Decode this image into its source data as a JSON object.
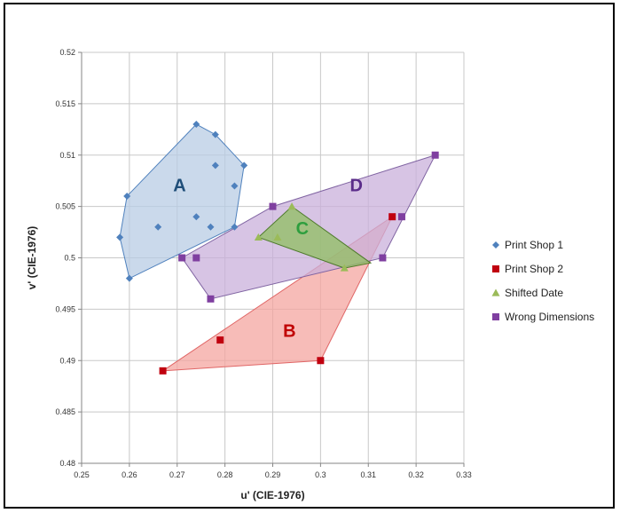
{
  "chart_data": {
    "type": "scatter",
    "xlabel": "u' (CIE-1976)",
    "ylabel": "v' (CIE-1976)",
    "xlim": [
      0.25,
      0.33
    ],
    "ylim": [
      0.48,
      0.52
    ],
    "xticks": [
      0.25,
      0.26,
      0.27,
      0.28,
      0.29,
      0.3,
      0.31,
      0.32,
      0.33
    ],
    "yticks": [
      0.48,
      0.485,
      0.49,
      0.495,
      0.5,
      0.505,
      0.51,
      0.515,
      0.52
    ],
    "xtick_labels": [
      "0.25",
      "0.26",
      "0.27",
      "0.28",
      "0.29",
      "0.3",
      "0.31",
      "0.32",
      "0.33"
    ],
    "ytick_labels": [
      "0.48",
      "0.485",
      "0.49",
      "0.495",
      "0.5",
      "0.505",
      "0.51",
      "0.515",
      "0.52"
    ],
    "grid": true,
    "legend_position": "right",
    "series": [
      {
        "name": "Print Shop 1",
        "marker": "diamond",
        "color": "#4f81bd",
        "points": [
          [
            0.258,
            0.502
          ],
          [
            0.2595,
            0.506
          ],
          [
            0.26,
            0.498
          ],
          [
            0.266,
            0.503
          ],
          [
            0.274,
            0.513
          ],
          [
            0.274,
            0.504
          ],
          [
            0.277,
            0.503
          ],
          [
            0.278,
            0.512
          ],
          [
            0.278,
            0.509
          ],
          [
            0.282,
            0.507
          ],
          [
            0.282,
            0.503
          ],
          [
            0.284,
            0.509
          ]
        ]
      },
      {
        "name": "Print Shop 2",
        "marker": "square",
        "color": "#c0000f",
        "points": [
          [
            0.267,
            0.489
          ],
          [
            0.279,
            0.492
          ],
          [
            0.3,
            0.49
          ],
          [
            0.315,
            0.504
          ]
        ]
      },
      {
        "name": "Shifted Date",
        "marker": "triangle",
        "color": "#9bbb59",
        "points": [
          [
            0.287,
            0.502
          ],
          [
            0.291,
            0.502
          ],
          [
            0.294,
            0.505
          ],
          [
            0.305,
            0.499
          ]
        ]
      },
      {
        "name": "Wrong Dimensions",
        "marker": "square",
        "color": "#7f3fa0",
        "points": [
          [
            0.271,
            0.5
          ],
          [
            0.274,
            0.5
          ],
          [
            0.277,
            0.496
          ],
          [
            0.29,
            0.505
          ],
          [
            0.313,
            0.5
          ],
          [
            0.317,
            0.504
          ],
          [
            0.324,
            0.51
          ]
        ]
      }
    ],
    "regions": [
      {
        "label": "A",
        "fill": "#b8cce4",
        "stroke": "#4f81bd",
        "label_color": "#1f4e79",
        "label_at": [
          0.2705,
          0.5065
        ],
        "polygon": [
          [
            0.258,
            0.502
          ],
          [
            0.2595,
            0.506
          ],
          [
            0.274,
            0.513
          ],
          [
            0.278,
            0.512
          ],
          [
            0.284,
            0.509
          ],
          [
            0.282,
            0.503
          ],
          [
            0.26,
            0.498
          ]
        ]
      },
      {
        "label": "B",
        "fill": "#f4a6a0",
        "stroke": "#e06666",
        "label_color": "#c00000",
        "label_at": [
          0.2935,
          0.4923
        ],
        "polygon": [
          [
            0.267,
            0.489
          ],
          [
            0.315,
            0.504
          ],
          [
            0.3,
            0.49
          ]
        ]
      },
      {
        "label": "D",
        "fill": "#c9b0db",
        "stroke": "#8064a2",
        "label_color": "#5b2c8a",
        "label_at": [
          0.3075,
          0.5065
        ],
        "polygon": [
          [
            0.271,
            0.5
          ],
          [
            0.29,
            0.505
          ],
          [
            0.324,
            0.51
          ],
          [
            0.313,
            0.5
          ],
          [
            0.277,
            0.496
          ]
        ]
      },
      {
        "label": "C",
        "fill": "#8fbf60",
        "stroke": "#4e7a2c",
        "label_color": "#2e9e3e",
        "label_at": [
          0.2962,
          0.5023
        ],
        "polygon": [
          [
            0.287,
            0.502
          ],
          [
            0.294,
            0.505
          ],
          [
            0.3105,
            0.4995
          ],
          [
            0.305,
            0.499
          ]
        ]
      }
    ]
  }
}
